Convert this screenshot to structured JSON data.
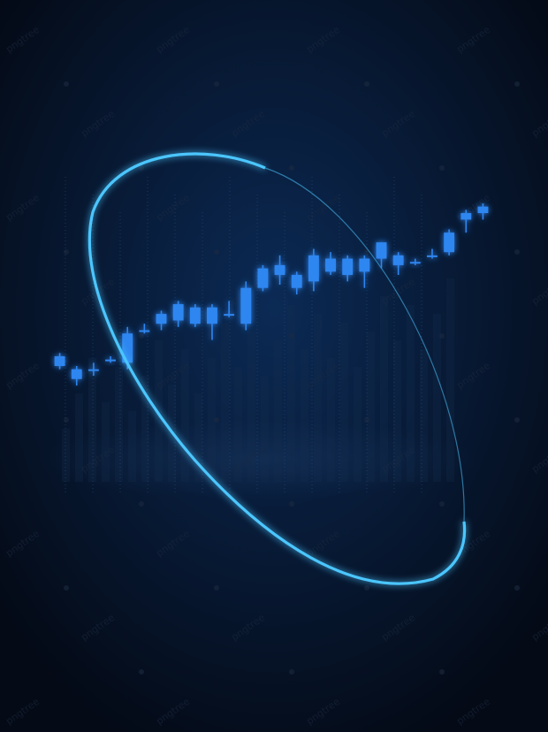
{
  "colors": {
    "background_center": "#0b2a55",
    "background_edge": "#040a16",
    "candle": "#2f86f0",
    "candle_glow": "#1f6fe0",
    "ring": "#4cc6ff"
  },
  "watermark_text": "pngtree",
  "chart_data": {
    "type": "candlestick",
    "title": "",
    "xlabel": "",
    "ylabel": "",
    "ylim": [
      0,
      100
    ],
    "grid": false,
    "legend": "none",
    "candles": [
      {
        "open": 50,
        "high": 54,
        "low": 49,
        "close": 53
      },
      {
        "open": 49,
        "high": 50,
        "low": 44,
        "close": 46
      },
      {
        "open": 49,
        "high": 51,
        "low": 47,
        "close": 49
      },
      {
        "open": 52,
        "high": 53,
        "low": 51,
        "close": 52
      },
      {
        "open": 51,
        "high": 62,
        "low": 49,
        "close": 60
      },
      {
        "open": 61,
        "high": 63,
        "low": 60,
        "close": 61
      },
      {
        "open": 63,
        "high": 67,
        "low": 61,
        "close": 66
      },
      {
        "open": 64,
        "high": 70,
        "low": 62,
        "close": 69
      },
      {
        "open": 63,
        "high": 69,
        "low": 62,
        "close": 68
      },
      {
        "open": 63,
        "high": 69,
        "low": 58,
        "close": 68
      },
      {
        "open": 66,
        "high": 70,
        "low": 65,
        "close": 66
      },
      {
        "open": 63,
        "high": 76,
        "low": 61,
        "close": 74
      },
      {
        "open": 74,
        "high": 81,
        "low": 73,
        "close": 80
      },
      {
        "open": 78,
        "high": 84,
        "low": 75,
        "close": 81
      },
      {
        "open": 74,
        "high": 79,
        "low": 72,
        "close": 78
      },
      {
        "open": 76,
        "high": 86,
        "low": 73,
        "close": 84
      },
      {
        "open": 83,
        "high": 85,
        "low": 78,
        "close": 79
      },
      {
        "open": 78,
        "high": 84,
        "low": 76,
        "close": 83
      },
      {
        "open": 83,
        "high": 84,
        "low": 74,
        "close": 79
      },
      {
        "open": 83,
        "high": 88,
        "low": 80,
        "close": 88
      },
      {
        "open": 81,
        "high": 85,
        "low": 78,
        "close": 84
      },
      {
        "open": 82,
        "high": 83,
        "low": 81,
        "close": 82
      },
      {
        "open": 84,
        "high": 86,
        "low": 83,
        "close": 84
      },
      {
        "open": 85,
        "high": 92,
        "low": 84,
        "close": 91
      },
      {
        "open": 95,
        "high": 98,
        "low": 91,
        "close": 97
      },
      {
        "open": 97,
        "high": 100,
        "low": 95,
        "close": 99
      }
    ]
  }
}
